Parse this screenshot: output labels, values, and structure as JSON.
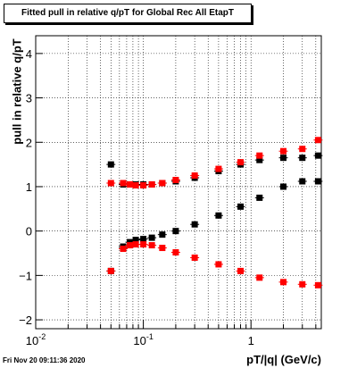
{
  "title": "Fitted pull in relative q/pT for Global Rec All EtapT",
  "date_stamp": "Fri Nov 20 09:11:36 2020",
  "chart_data": {
    "type": "scatter",
    "title": "Fitted pull in relative q/pT for Global Rec All EtapT",
    "xlabel": "pT/|q| (GeV/c)",
    "ylabel": "pull in relative q/pT",
    "x_scale": "log",
    "xlim": [
      0.01,
      4.5
    ],
    "ylim": [
      -2.2,
      4.4
    ],
    "x_ticks": [
      0.01,
      0.1,
      1
    ],
    "x_tick_labels": [
      "10^-2",
      "10^-1",
      "1"
    ],
    "y_ticks": [
      -2,
      -1,
      0,
      1,
      2,
      3,
      4
    ],
    "y_tick_labels": [
      "−2",
      "−1",
      "0",
      "1",
      "2",
      "3",
      "4"
    ],
    "grid": true,
    "legend": "none",
    "series": [
      {
        "color": "#000000",
        "marker": "square",
        "x": [
          0.05,
          0.05,
          0.065,
          0.075,
          0.085,
          0.1,
          0.12,
          0.15,
          0.2,
          0.3,
          0.5,
          0.8,
          1.2,
          2.0,
          3.0,
          4.2
        ],
        "y": [
          1.5,
          -0.9,
          -0.35,
          -0.25,
          -0.2,
          -0.18,
          -0.15,
          -0.08,
          0.0,
          0.15,
          0.35,
          0.55,
          0.75,
          1.0,
          1.12,
          1.12
        ]
      },
      {
        "color": "#000000",
        "marker": "square",
        "x": [
          0.065,
          0.075,
          0.085,
          0.1,
          0.12,
          0.15,
          0.2,
          0.3,
          0.5,
          0.8,
          1.2,
          2.0,
          3.0,
          4.2
        ],
        "y": [
          1.05,
          1.05,
          1.05,
          1.05,
          1.05,
          1.08,
          1.12,
          1.2,
          1.35,
          1.5,
          1.6,
          1.65,
          1.65,
          1.7
        ]
      },
      {
        "color": "#ff0000",
        "marker": "square",
        "x": [
          0.05,
          0.065,
          0.075,
          0.085,
          0.1,
          0.12,
          0.15,
          0.2,
          0.3,
          0.5,
          0.8,
          1.2,
          2.0,
          3.0,
          4.2
        ],
        "y": [
          1.08,
          1.08,
          1.05,
          1.03,
          1.03,
          1.05,
          1.08,
          1.15,
          1.25,
          1.4,
          1.55,
          1.7,
          1.8,
          1.85,
          2.05
        ]
      },
      {
        "color": "#ff0000",
        "marker": "square",
        "x": [
          0.05,
          0.065,
          0.075,
          0.085,
          0.1,
          0.12,
          0.15,
          0.2,
          0.3,
          0.5,
          0.8,
          1.2,
          2.0,
          3.0,
          4.2
        ],
        "y": [
          -0.9,
          -0.4,
          -0.32,
          -0.3,
          -0.3,
          -0.32,
          -0.38,
          -0.48,
          -0.6,
          -0.75,
          -0.9,
          -1.05,
          -1.15,
          -1.2,
          -1.22
        ]
      }
    ]
  }
}
